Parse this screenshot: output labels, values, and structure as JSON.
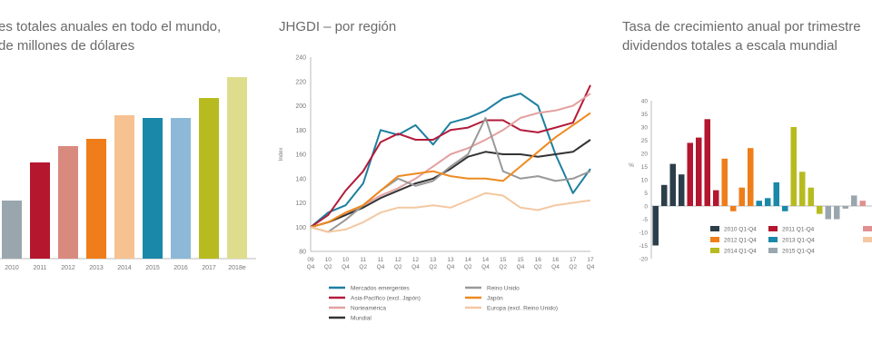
{
  "charts": {
    "left": {
      "title_line1": "es totales anuales en todo el mundo,",
      "title_line2": "de millones de dólares"
    },
    "middle": {
      "title": "JHGDI – por región"
    },
    "right": {
      "title_line1": "Tasa de crecimiento anual por trimestre",
      "title_line2": "dividendos totales a escala mundial"
    }
  },
  "chart_data": [
    {
      "type": "bar",
      "title": "es totales anuales en todo el mundo, de millones de dólares",
      "categories": [
        "2010",
        "2011",
        "2012",
        "2013",
        "2014",
        "2015",
        "2016",
        "2017",
        "2018e"
      ],
      "values": [
        64,
        106,
        124,
        132,
        158,
        155,
        155,
        177,
        200
      ],
      "colors": [
        "#9aa6ad",
        "#b5172e",
        "#d98a7e",
        "#ee7d1a",
        "#f6c291",
        "#1a88a8",
        "#8db8d8",
        "#b7bb1f",
        "#dedd8e"
      ],
      "ylim": [
        0,
        215
      ]
    },
    {
      "type": "line",
      "title": "JHGDI – por región",
      "ylabel": "Index",
      "ylim": [
        80,
        240
      ],
      "yticks": [
        "80",
        "100",
        "120",
        "140",
        "160",
        "180",
        "200",
        "220",
        "240"
      ],
      "xticks": [
        [
          "09",
          "Q4"
        ],
        [
          "10",
          "Q2"
        ],
        [
          "10",
          "Q4"
        ],
        [
          "11",
          "Q2"
        ],
        [
          "11",
          "Q4"
        ],
        [
          "12",
          "Q2"
        ],
        [
          "12",
          "Q4"
        ],
        [
          "13",
          "Q2"
        ],
        [
          "13",
          "Q4"
        ],
        [
          "14",
          "Q2"
        ],
        [
          "14",
          "Q4"
        ],
        [
          "15",
          "Q2"
        ],
        [
          "15",
          "Q4"
        ],
        [
          "16",
          "Q2"
        ],
        [
          "16",
          "Q4"
        ],
        [
          "17",
          "Q2"
        ],
        [
          "17",
          "Q4"
        ]
      ],
      "series": [
        {
          "name": "Mercados emergentes",
          "color": "#1d7fa0",
          "values": [
            100,
            112,
            118,
            136,
            180,
            176,
            184,
            168,
            186,
            190,
            196,
            206,
            210,
            200,
            160,
            128,
            148
          ]
        },
        {
          "name": "Asia-Pacífico (excl. Japón)",
          "color": "#b31b3a",
          "values": [
            100,
            110,
            130,
            146,
            170,
            177,
            172,
            172,
            180,
            182,
            188,
            188,
            180,
            178,
            182,
            186,
            217
          ]
        },
        {
          "name": "Norteamérica",
          "color": "#e3a0a0",
          "values": [
            100,
            104,
            110,
            118,
            126,
            132,
            140,
            150,
            160,
            165,
            172,
            180,
            190,
            194,
            196,
            200,
            210
          ]
        },
        {
          "name": "Mundial",
          "color": "#333333",
          "values": [
            100,
            104,
            110,
            116,
            124,
            130,
            136,
            140,
            148,
            158,
            162,
            160,
            160,
            158,
            160,
            162,
            172
          ]
        },
        {
          "name": "Reino Unido",
          "color": "#999999",
          "values": [
            100,
            96,
            106,
            118,
            130,
            140,
            134,
            138,
            150,
            160,
            190,
            146,
            140,
            142,
            138,
            140,
            146
          ]
        },
        {
          "name": "Japón",
          "color": "#ee8a20",
          "values": [
            100,
            104,
            112,
            118,
            130,
            142,
            144,
            146,
            142,
            140,
            140,
            138,
            150,
            162,
            174,
            184,
            194
          ]
        },
        {
          "name": "Europa (excl. Reino Unido)",
          "color": "#f4c8a2",
          "values": [
            100,
            96,
            98,
            104,
            112,
            116,
            116,
            118,
            116,
            122,
            128,
            126,
            116,
            114,
            118,
            120,
            122
          ]
        }
      ]
    },
    {
      "type": "bar",
      "title": "Tasa de crecimiento anual por trimestre dividendos totales a escala mundial",
      "ylabel": "%",
      "ylim": [
        -20,
        40
      ],
      "yticks": [
        "40",
        "35",
        "30",
        "25",
        "20",
        "15",
        "10",
        "5",
        "0",
        "-5",
        "-10",
        "-15",
        "-20"
      ],
      "values": [
        -15,
        8,
        16,
        12,
        24,
        26,
        33,
        6,
        18,
        -2,
        7,
        22,
        2,
        3,
        9,
        -2,
        30,
        13,
        7,
        -3,
        -5,
        -5,
        -1,
        4,
        2
      ],
      "colors": [
        "#2b3e4a",
        "#2b3e4a",
        "#2b3e4a",
        "#2b3e4a",
        "#b3162e",
        "#b3162e",
        "#b3162e",
        "#b3162e",
        "#ee7d1a",
        "#ee7d1a",
        "#ee7d1a",
        "#ee7d1a",
        "#1a88a8",
        "#1a88a8",
        "#1a88a8",
        "#1a88a8",
        "#b7bb1f",
        "#b7bb1f",
        "#b7bb1f",
        "#b7bb1f",
        "#9aa6ad",
        "#9aa6ad",
        "#9aa6ad",
        "#9aa6ad",
        "#e09090"
      ],
      "legend": [
        {
          "name": "2010 Q1-Q4",
          "color": "#2b3e4a"
        },
        {
          "name": "2011 Q1-Q4",
          "color": "#b3162e"
        },
        {
          "name": "2012 Q1-Q4",
          "color": "#ee7d1a"
        },
        {
          "name": "2013 Q1-Q4",
          "color": "#1a88a8"
        },
        {
          "name": "2014 Q1-Q4",
          "color": "#b7bb1f"
        },
        {
          "name": "2015 Q1-Q4",
          "color": "#9aa6ad"
        }
      ]
    }
  ]
}
